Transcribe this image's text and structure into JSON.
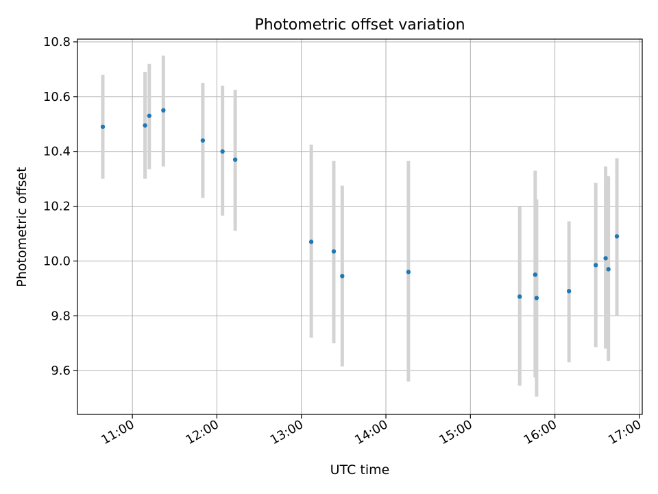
{
  "chart_data": {
    "type": "scatter",
    "title": "Photometric offset variation",
    "xlabel": "UTC time",
    "ylabel": "Photometric offset",
    "x_tick_labels": [
      "11:00",
      "12:00",
      "13:00",
      "14:00",
      "15:00",
      "16:00",
      "17:00"
    ],
    "y_tick_labels": [
      "9.6",
      "9.8",
      "10.0",
      "10.2",
      "10.4",
      "10.6",
      "10.8"
    ],
    "y_ticks": [
      9.6,
      9.8,
      10.0,
      10.2,
      10.4,
      10.6,
      10.8
    ],
    "xlim": [
      "10:21",
      "17:02"
    ],
    "ylim": [
      9.44,
      10.81
    ],
    "grid": true,
    "point_color": "#1f77b4",
    "errorbar_color": "#d3d3d3",
    "points": [
      {
        "x": "10:39",
        "y": 10.49,
        "ylow": 10.3,
        "yhigh": 10.68
      },
      {
        "x": "11:09",
        "y": 10.495,
        "ylow": 10.3,
        "yhigh": 10.69
      },
      {
        "x": "11:12",
        "y": 10.53,
        "ylow": 10.335,
        "yhigh": 10.72
      },
      {
        "x": "11:22",
        "y": 10.55,
        "ylow": 10.345,
        "yhigh": 10.75
      },
      {
        "x": "11:50",
        "y": 10.44,
        "ylow": 10.23,
        "yhigh": 10.65
      },
      {
        "x": "12:04",
        "y": 10.4,
        "ylow": 10.165,
        "yhigh": 10.64
      },
      {
        "x": "12:13",
        "y": 10.37,
        "ylow": 10.11,
        "yhigh": 10.625
      },
      {
        "x": "13:07",
        "y": 10.07,
        "ylow": 9.72,
        "yhigh": 10.425
      },
      {
        "x": "13:23",
        "y": 10.035,
        "ylow": 9.7,
        "yhigh": 10.365
      },
      {
        "x": "13:29",
        "y": 9.945,
        "ylow": 9.615,
        "yhigh": 10.275
      },
      {
        "x": "14:16",
        "y": 9.96,
        "ylow": 9.56,
        "yhigh": 10.365
      },
      {
        "x": "15:35",
        "y": 9.87,
        "ylow": 9.545,
        "yhigh": 10.2
      },
      {
        "x": "15:46",
        "y": 9.95,
        "ylow": 9.575,
        "yhigh": 10.33
      },
      {
        "x": "15:47",
        "y": 9.865,
        "ylow": 9.505,
        "yhigh": 10.225
      },
      {
        "x": "16:10",
        "y": 9.89,
        "ylow": 9.63,
        "yhigh": 10.145
      },
      {
        "x": "16:29",
        "y": 9.985,
        "ylow": 9.685,
        "yhigh": 10.285
      },
      {
        "x": "16:36",
        "y": 10.01,
        "ylow": 9.68,
        "yhigh": 10.345
      },
      {
        "x": "16:38",
        "y": 9.97,
        "ylow": 9.635,
        "yhigh": 10.31
      },
      {
        "x": "16:44",
        "y": 10.09,
        "ylow": 9.8,
        "yhigh": 10.375
      }
    ]
  }
}
